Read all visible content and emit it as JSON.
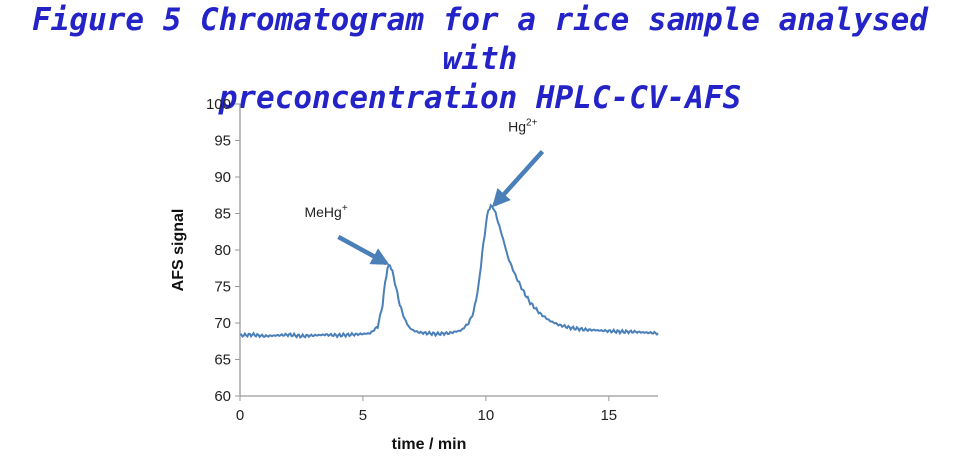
{
  "figure": {
    "title_line1": "Figure 5 Chromatogram for a rice sample analysed with",
    "title_line2": "preconcentration  HPLC-CV-AFS"
  },
  "chart_data": {
    "type": "line",
    "xlabel": "time / min",
    "ylabel": "AFS signal",
    "xlim": [
      0,
      17
    ],
    "ylim": [
      60,
      100
    ],
    "x_ticks": [
      0,
      5,
      10,
      15
    ],
    "y_ticks": [
      60,
      65,
      70,
      75,
      80,
      85,
      90,
      95,
      100
    ],
    "grid": false,
    "line_color": "#4a7fb8",
    "arrow_color": "#4a7fb8",
    "series": [
      {
        "x": [
          0,
          0.5,
          1,
          1.5,
          2,
          2.5,
          3,
          3.5,
          4,
          4.5,
          5,
          5.3,
          5.6,
          5.8,
          5.9,
          6.0,
          6.1,
          6.2,
          6.35,
          6.5,
          6.7,
          6.9,
          7.1,
          7.3,
          7.6,
          8,
          8.5,
          9,
          9.3,
          9.5,
          9.7,
          9.85,
          10.0,
          10.1,
          10.2,
          10.3,
          10.4,
          10.5,
          10.7,
          10.9,
          11.2,
          11.5,
          11.8,
          12.2,
          12.6,
          13,
          13.5,
          14,
          14.5,
          15,
          15.5,
          16,
          16.5,
          17
        ],
        "y": [
          68.3,
          68.4,
          68.2,
          68.3,
          68.4,
          68.2,
          68.3,
          68.4,
          68.3,
          68.4,
          68.5,
          68.6,
          69.5,
          72.5,
          75.5,
          77.5,
          78.0,
          77.0,
          74.8,
          72.5,
          70.5,
          69.3,
          68.9,
          68.7,
          68.6,
          68.5,
          68.6,
          69.0,
          70.0,
          71.5,
          75.0,
          79.5,
          83.5,
          85.5,
          86.0,
          85.8,
          85.0,
          83.8,
          81.5,
          79.0,
          76.5,
          74.5,
          72.8,
          71.3,
          70.3,
          69.7,
          69.3,
          69.1,
          69.0,
          68.9,
          68.8,
          68.8,
          68.7,
          68.6
        ]
      }
    ],
    "annotations": [
      {
        "base": "MeHg",
        "sup": "+",
        "x": 3.5,
        "y": 84.5,
        "arrow_from": [
          4.0,
          81.8
        ],
        "arrow_to": [
          5.95,
          78.2
        ]
      },
      {
        "base": "Hg",
        "sup": "2+",
        "x": 11.5,
        "y": 96.2,
        "arrow_from": [
          12.3,
          93.5
        ],
        "arrow_to": [
          10.35,
          86.2
        ]
      }
    ]
  }
}
